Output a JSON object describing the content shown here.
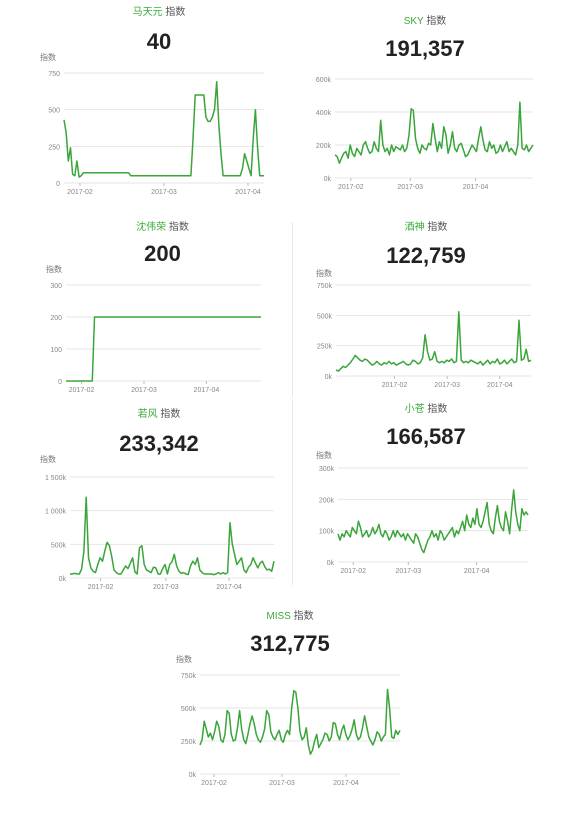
{
  "colors": {
    "line": "#3aa53a",
    "grid": "#e6e6e6",
    "axis_text": "#888888",
    "name": "#3daa3d"
  },
  "chart_data": [
    {
      "type": "line",
      "name": "马天元",
      "suffix": "指数",
      "value": "40",
      "ylabel": "指数",
      "yticks": [
        0,
        250,
        500,
        750
      ],
      "ytick_labels": [
        "0",
        "250",
        "500",
        "750"
      ],
      "ylim": [
        0,
        750
      ],
      "xticks": [
        "2017-02",
        "2017-03",
        "2017-04"
      ],
      "xtick_pos": [
        0.08,
        0.5,
        0.92
      ],
      "values": [
        430,
        340,
        150,
        240,
        60,
        50,
        150,
        40,
        50,
        70,
        70,
        70,
        70,
        70,
        70,
        70,
        70,
        70,
        70,
        70,
        70,
        70,
        70,
        70,
        70,
        70,
        70,
        70,
        70,
        70,
        70,
        50,
        50,
        50,
        50,
        50,
        50,
        50,
        50,
        50,
        50,
        50,
        50,
        50,
        50,
        50,
        50,
        50,
        50,
        50,
        50,
        50,
        50,
        50,
        50,
        50,
        50,
        50,
        50,
        50,
        300,
        600,
        600,
        600,
        600,
        600,
        450,
        420,
        420,
        450,
        500,
        690,
        400,
        200,
        50,
        50,
        50,
        50,
        50,
        50,
        50,
        50,
        50,
        100,
        200,
        150,
        100,
        50,
        300,
        500,
        250,
        50,
        50,
        50
      ]
    },
    {
      "type": "line",
      "name": "SKY",
      "suffix": "指数",
      "value": "191,357",
      "ylabel": "",
      "yticks": [
        0,
        200000,
        400000,
        600000
      ],
      "ytick_labels": [
        "0k",
        "200k",
        "400k",
        "600k"
      ],
      "ylim": [
        0,
        600000
      ],
      "xticks": [
        "2017-02",
        "2017-03",
        "2017-04"
      ],
      "xtick_pos": [
        0.08,
        0.38,
        0.71
      ],
      "values": [
        140000,
        130000,
        90000,
        120000,
        150000,
        160000,
        120000,
        200000,
        150000,
        130000,
        180000,
        160000,
        140000,
        200000,
        220000,
        180000,
        150000,
        160000,
        220000,
        180000,
        160000,
        350000,
        200000,
        160000,
        180000,
        140000,
        200000,
        160000,
        190000,
        180000,
        170000,
        200000,
        160000,
        180000,
        260000,
        420000,
        410000,
        240000,
        180000,
        150000,
        200000,
        180000,
        170000,
        210000,
        200000,
        330000,
        240000,
        160000,
        220000,
        180000,
        310000,
        260000,
        150000,
        200000,
        280000,
        180000,
        160000,
        200000,
        210000,
        170000,
        130000,
        140000,
        170000,
        200000,
        180000,
        160000,
        240000,
        310000,
        230000,
        170000,
        160000,
        220000,
        180000,
        200000,
        150000,
        160000,
        200000,
        160000,
        190000,
        220000,
        160000,
        180000,
        160000,
        140000,
        200000,
        460000,
        180000,
        170000,
        200000,
        160000,
        180000,
        200000
      ]
    },
    {
      "type": "line",
      "name": "沈伟荣",
      "suffix": "指数",
      "value": "200",
      "ylabel": "指数",
      "yticks": [
        0,
        100,
        200,
        300
      ],
      "ytick_labels": [
        "0",
        "100",
        "200",
        "300"
      ],
      "ylim": [
        0,
        300
      ],
      "xticks": [
        "2017-02",
        "2017-03",
        "2017-04"
      ],
      "xtick_pos": [
        0.08,
        0.4,
        0.72
      ],
      "values": [
        0,
        0,
        0,
        0,
        0,
        0,
        0,
        0,
        0,
        0,
        0,
        0,
        0,
        200,
        200,
        200,
        200,
        200,
        200,
        200,
        200,
        200,
        200,
        200,
        200,
        200,
        200,
        200,
        200,
        200,
        200,
        200,
        200,
        200,
        200,
        200,
        200,
        200,
        200,
        200,
        200,
        200,
        200,
        200,
        200,
        200,
        200,
        200,
        200,
        200,
        200,
        200,
        200,
        200,
        200,
        200,
        200,
        200,
        200,
        200,
        200,
        200,
        200,
        200,
        200,
        200,
        200,
        200,
        200,
        200,
        200,
        200,
        200,
        200,
        200,
        200,
        200,
        200,
        200,
        200,
        200,
        200,
        200,
        200,
        200,
        200,
        200,
        200,
        200,
        200
      ]
    },
    {
      "type": "line",
      "name": "酒神",
      "suffix": "指数",
      "value": "122,759",
      "ylabel": "指数",
      "yticks": [
        0,
        250000,
        500000,
        750000
      ],
      "ytick_labels": [
        "0k",
        "250k",
        "500k",
        "750k"
      ],
      "ylim": [
        0,
        750000
      ],
      "xticks": [
        "2017-02",
        "2017-03",
        "2017-04"
      ],
      "xtick_pos": [
        0.3,
        0.57,
        0.84
      ],
      "values": [
        50000,
        40000,
        60000,
        80000,
        70000,
        90000,
        110000,
        140000,
        170000,
        150000,
        130000,
        120000,
        140000,
        130000,
        110000,
        90000,
        100000,
        120000,
        100000,
        90000,
        110000,
        100000,
        120000,
        100000,
        110000,
        90000,
        100000,
        110000,
        120000,
        100000,
        90000,
        100000,
        130000,
        120000,
        100000,
        110000,
        150000,
        340000,
        200000,
        130000,
        140000,
        200000,
        120000,
        110000,
        120000,
        110000,
        130000,
        120000,
        140000,
        110000,
        120000,
        530000,
        130000,
        110000,
        120000,
        110000,
        130000,
        120000,
        110000,
        100000,
        120000,
        90000,
        110000,
        130000,
        100000,
        120000,
        110000,
        140000,
        100000,
        110000,
        130000,
        100000,
        120000,
        140000,
        110000,
        120000,
        460000,
        130000,
        140000,
        220000,
        120000,
        130000
      ]
    },
    {
      "type": "line",
      "name": "若风",
      "suffix": "指数",
      "value": "233,342",
      "ylabel": "指数",
      "yticks": [
        0,
        500000,
        1000000,
        1500000
      ],
      "ytick_labels": [
        "0k",
        "500k",
        "1 000k",
        "1 500k"
      ],
      "ylim": [
        0,
        1500000
      ],
      "xticks": [
        "2017-02",
        "2017-03",
        "2017-04"
      ],
      "xtick_pos": [
        0.15,
        0.47,
        0.78
      ],
      "values": [
        60000,
        60000,
        70000,
        60000,
        60000,
        130000,
        400000,
        1200000,
        300000,
        150000,
        100000,
        80000,
        200000,
        300000,
        250000,
        400000,
        530000,
        480000,
        320000,
        120000,
        80000,
        60000,
        60000,
        120000,
        180000,
        140000,
        220000,
        300000,
        90000,
        60000,
        450000,
        480000,
        200000,
        120000,
        100000,
        80000,
        160000,
        150000,
        60000,
        60000,
        140000,
        200000,
        60000,
        200000,
        240000,
        350000,
        180000,
        100000,
        70000,
        80000,
        60000,
        50000,
        180000,
        250000,
        200000,
        300000,
        120000,
        80000,
        60000,
        60000,
        60000,
        60000,
        50000,
        60000,
        80000,
        60000,
        80000,
        60000,
        80000,
        820000,
        500000,
        350000,
        200000,
        250000,
        300000,
        120000,
        80000,
        160000,
        200000,
        300000,
        220000,
        150000,
        220000,
        250000,
        170000,
        120000,
        130000,
        100000,
        250000
      ]
    },
    {
      "type": "line",
      "name": "小苍",
      "suffix": "指数",
      "value": "166,587",
      "ylabel": "指数",
      "yticks": [
        0,
        100000,
        200000,
        300000
      ],
      "ytick_labels": [
        "0k",
        "100k",
        "200k",
        "300k"
      ],
      "ylim": [
        0,
        300000
      ],
      "xticks": [
        "2017-02",
        "2017-03",
        "2017-04"
      ],
      "xtick_pos": [
        0.08,
        0.37,
        0.73
      ],
      "values": [
        90000,
        70000,
        90000,
        80000,
        100000,
        90000,
        80000,
        110000,
        100000,
        90000,
        130000,
        110000,
        80000,
        90000,
        100000,
        80000,
        90000,
        110000,
        90000,
        100000,
        120000,
        90000,
        80000,
        100000,
        90000,
        70000,
        80000,
        100000,
        80000,
        100000,
        90000,
        80000,
        90000,
        70000,
        90000,
        80000,
        70000,
        60000,
        90000,
        80000,
        60000,
        40000,
        30000,
        50000,
        70000,
        80000,
        100000,
        80000,
        90000,
        70000,
        100000,
        90000,
        70000,
        80000,
        90000,
        100000,
        110000,
        80000,
        100000,
        90000,
        110000,
        130000,
        100000,
        150000,
        120000,
        110000,
        140000,
        120000,
        170000,
        120000,
        110000,
        130000,
        160000,
        190000,
        120000,
        100000,
        90000,
        140000,
        180000,
        130000,
        110000,
        100000,
        160000,
        130000,
        90000,
        170000,
        230000,
        160000,
        120000,
        100000,
        170000,
        150000,
        160000,
        150000
      ]
    },
    {
      "type": "line",
      "name": "MISS",
      "suffix": "指数",
      "value": "312,775",
      "ylabel": "指数",
      "yticks": [
        0,
        250000,
        500000,
        750000
      ],
      "ytick_labels": [
        "0k",
        "250k",
        "500k",
        "750k"
      ],
      "ylim": [
        0,
        750000
      ],
      "xticks": [
        "2017-02",
        "2017-03",
        "2017-04"
      ],
      "xtick_pos": [
        0.07,
        0.41,
        0.73
      ],
      "values": [
        220000,
        260000,
        400000,
        340000,
        280000,
        310000,
        260000,
        320000,
        400000,
        360000,
        260000,
        240000,
        300000,
        480000,
        460000,
        300000,
        250000,
        260000,
        350000,
        480000,
        340000,
        260000,
        230000,
        300000,
        380000,
        440000,
        380000,
        300000,
        260000,
        240000,
        280000,
        340000,
        480000,
        450000,
        320000,
        280000,
        260000,
        300000,
        330000,
        260000,
        240000,
        300000,
        330000,
        300000,
        500000,
        630000,
        620000,
        500000,
        320000,
        260000,
        280000,
        350000,
        220000,
        150000,
        180000,
        250000,
        300000,
        200000,
        230000,
        260000,
        310000,
        300000,
        250000,
        280000,
        390000,
        380000,
        300000,
        260000,
        330000,
        370000,
        300000,
        260000,
        290000,
        340000,
        410000,
        300000,
        260000,
        280000,
        350000,
        440000,
        360000,
        280000,
        250000,
        220000,
        260000,
        320000,
        300000,
        250000,
        280000,
        300000,
        640000,
        500000,
        280000,
        270000,
        330000,
        300000,
        330000
      ]
    }
  ]
}
